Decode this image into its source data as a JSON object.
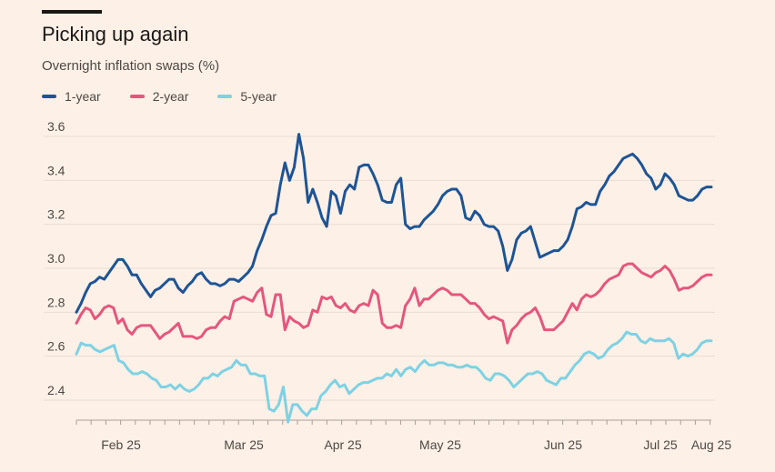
{
  "header": {
    "title": "Picking up again",
    "subtitle": "Overnight inflation swaps (%)"
  },
  "chart_data": {
    "type": "line",
    "title": "Picking up again",
    "subtitle": "Overnight inflation swaps (%)",
    "xlabel": "",
    "ylabel": "",
    "ylim": [
      2.3,
      3.65
    ],
    "y_ticks": [
      2.4,
      2.6,
      2.8,
      3.0,
      3.2,
      3.4,
      3.6
    ],
    "y_tick_labels": [
      "2.4",
      "2.6",
      "2.8",
      "3.0",
      "3.2",
      "3.4",
      "3.6"
    ],
    "x_tick_labels": [
      "Feb 25",
      "Mar 25",
      "Apr 25",
      "May 25",
      "Jun 25",
      "Jul 25",
      "Aug 25"
    ],
    "grid": true,
    "legend": "top-left",
    "series": [
      {
        "name": "1-year",
        "color": "#1e5495",
        "values": [
          2.8,
          2.84,
          2.89,
          2.93,
          2.94,
          2.96,
          2.95,
          2.98,
          3.01,
          3.04,
          3.04,
          3.01,
          2.97,
          2.97,
          2.93,
          2.9,
          2.87,
          2.9,
          2.91,
          2.93,
          2.95,
          2.95,
          2.91,
          2.89,
          2.92,
          2.94,
          2.97,
          2.98,
          2.95,
          2.93,
          2.93,
          2.92,
          2.93,
          2.95,
          2.95,
          2.94,
          2.96,
          2.98,
          3.01,
          3.08,
          3.13,
          3.19,
          3.24,
          3.25,
          3.38,
          3.48,
          3.4,
          3.46,
          3.61,
          3.5,
          3.3,
          3.36,
          3.3,
          3.23,
          3.19,
          3.35,
          3.33,
          3.25,
          3.35,
          3.38,
          3.36,
          3.46,
          3.47,
          3.47,
          3.43,
          3.38,
          3.31,
          3.3,
          3.3,
          3.38,
          3.41,
          3.2,
          3.18,
          3.19,
          3.19,
          3.22,
          3.24,
          3.26,
          3.29,
          3.33,
          3.35,
          3.36,
          3.36,
          3.33,
          3.23,
          3.22,
          3.26,
          3.24,
          3.2,
          3.19,
          3.19,
          3.17,
          3.1,
          2.99,
          3.04,
          3.13,
          3.16,
          3.17,
          3.19,
          3.12,
          3.05,
          3.06,
          3.07,
          3.08,
          3.08,
          3.1,
          3.13,
          3.19,
          3.27,
          3.28,
          3.3,
          3.29,
          3.29,
          3.35,
          3.38,
          3.42,
          3.44,
          3.47,
          3.5,
          3.51,
          3.52,
          3.5,
          3.47,
          3.43,
          3.41,
          3.36,
          3.38,
          3.43,
          3.41,
          3.38,
          3.33,
          3.32,
          3.31,
          3.31,
          3.33,
          3.36,
          3.37,
          3.37
        ]
      },
      {
        "name": "2-year",
        "color": "#e5567d",
        "values": [
          2.75,
          2.79,
          2.82,
          2.81,
          2.77,
          2.79,
          2.82,
          2.83,
          2.82,
          2.75,
          2.77,
          2.72,
          2.7,
          2.73,
          2.74,
          2.74,
          2.74,
          2.71,
          2.68,
          2.7,
          2.71,
          2.73,
          2.75,
          2.69,
          2.69,
          2.69,
          2.68,
          2.69,
          2.72,
          2.73,
          2.73,
          2.76,
          2.78,
          2.77,
          2.85,
          2.86,
          2.87,
          2.86,
          2.85,
          2.89,
          2.91,
          2.79,
          2.78,
          2.88,
          2.88,
          2.72,
          2.78,
          2.76,
          2.75,
          2.73,
          2.74,
          2.81,
          2.8,
          2.87,
          2.86,
          2.87,
          2.83,
          2.82,
          2.84,
          2.81,
          2.8,
          2.83,
          2.84,
          2.83,
          2.9,
          2.88,
          2.75,
          2.73,
          2.73,
          2.74,
          2.73,
          2.83,
          2.86,
          2.91,
          2.83,
          2.86,
          2.86,
          2.88,
          2.9,
          2.91,
          2.9,
          2.88,
          2.88,
          2.88,
          2.86,
          2.84,
          2.84,
          2.82,
          2.79,
          2.77,
          2.78,
          2.77,
          2.76,
          2.66,
          2.72,
          2.74,
          2.77,
          2.79,
          2.8,
          2.82,
          2.78,
          2.72,
          2.72,
          2.72,
          2.74,
          2.76,
          2.8,
          2.84,
          2.81,
          2.86,
          2.88,
          2.87,
          2.88,
          2.9,
          2.93,
          2.95,
          2.96,
          2.97,
          3.01,
          3.02,
          3.02,
          3.0,
          2.98,
          2.97,
          2.96,
          2.98,
          2.99,
          3.01,
          2.99,
          2.95,
          2.9,
          2.91,
          2.91,
          2.92,
          2.94,
          2.96,
          2.97,
          2.97
        ]
      },
      {
        "name": "5-year",
        "color": "#7ed2e3",
        "values": [
          2.61,
          2.66,
          2.65,
          2.65,
          2.63,
          2.62,
          2.63,
          2.64,
          2.65,
          2.58,
          2.57,
          2.54,
          2.52,
          2.52,
          2.53,
          2.52,
          2.5,
          2.49,
          2.46,
          2.46,
          2.47,
          2.45,
          2.47,
          2.45,
          2.44,
          2.45,
          2.47,
          2.5,
          2.5,
          2.52,
          2.51,
          2.53,
          2.54,
          2.55,
          2.58,
          2.56,
          2.56,
          2.52,
          2.52,
          2.51,
          2.51,
          2.36,
          2.35,
          2.38,
          2.46,
          2.3,
          2.38,
          2.38,
          2.35,
          2.33,
          2.36,
          2.36,
          2.42,
          2.44,
          2.47,
          2.49,
          2.46,
          2.47,
          2.43,
          2.45,
          2.47,
          2.48,
          2.48,
          2.49,
          2.5,
          2.5,
          2.52,
          2.51,
          2.54,
          2.51,
          2.54,
          2.55,
          2.53,
          2.56,
          2.58,
          2.56,
          2.56,
          2.57,
          2.57,
          2.56,
          2.56,
          2.55,
          2.55,
          2.56,
          2.55,
          2.55,
          2.53,
          2.5,
          2.49,
          2.52,
          2.52,
          2.51,
          2.49,
          2.46,
          2.48,
          2.5,
          2.52,
          2.52,
          2.53,
          2.52,
          2.49,
          2.48,
          2.47,
          2.5,
          2.5,
          2.53,
          2.56,
          2.58,
          2.61,
          2.62,
          2.61,
          2.59,
          2.6,
          2.63,
          2.65,
          2.66,
          2.68,
          2.71,
          2.7,
          2.7,
          2.67,
          2.66,
          2.68,
          2.67,
          2.67,
          2.67,
          2.68,
          2.66,
          2.59,
          2.61,
          2.6,
          2.61,
          2.63,
          2.66,
          2.67,
          2.67
        ]
      }
    ]
  }
}
